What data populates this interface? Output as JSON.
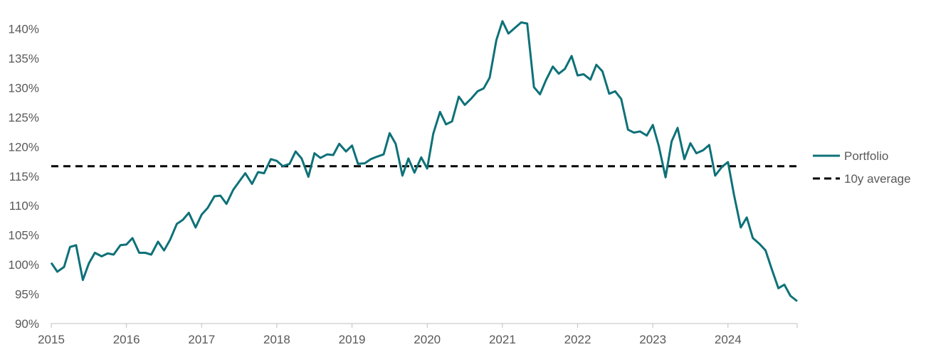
{
  "chart_data": {
    "type": "line",
    "title": "",
    "xlabel": "",
    "ylabel": "",
    "xlim": [
      2015.0,
      2024.92
    ],
    "ylim": [
      90,
      142
    ],
    "x_ticks": [
      2015,
      2016,
      2017,
      2018,
      2019,
      2020,
      2021,
      2022,
      2023,
      2024
    ],
    "x_tick_labels": [
      "2015",
      "2016",
      "2017",
      "2018",
      "2019",
      "2020",
      "2021",
      "2022",
      "2023",
      "2024"
    ],
    "y_ticks": [
      90,
      95,
      100,
      105,
      110,
      115,
      120,
      125,
      130,
      135,
      140
    ],
    "y_tick_labels": [
      "90%",
      "95%",
      "100%",
      "105%",
      "110%",
      "115%",
      "120%",
      "125%",
      "130%",
      "135%",
      "140%"
    ],
    "grid": false,
    "legend": {
      "placement": "right",
      "entries": [
        "Portfolio",
        "10y average"
      ]
    },
    "colors": {
      "portfolio": "#0e7178",
      "average": "#000000"
    },
    "series": [
      {
        "name": "Portfolio",
        "style": "solid",
        "points": [
          [
            2015.0,
            100.3
          ],
          [
            2015.08,
            98.8
          ],
          [
            2015.17,
            99.6
          ],
          [
            2015.25,
            103.0
          ],
          [
            2015.33,
            103.3
          ],
          [
            2015.42,
            97.4
          ],
          [
            2015.5,
            100.2
          ],
          [
            2015.58,
            102.0
          ],
          [
            2015.67,
            101.4
          ],
          [
            2015.75,
            101.9
          ],
          [
            2015.83,
            101.7
          ],
          [
            2015.92,
            103.3
          ],
          [
            2016.0,
            103.4
          ],
          [
            2016.08,
            104.5
          ],
          [
            2016.17,
            102.0
          ],
          [
            2016.25,
            102.0
          ],
          [
            2016.33,
            101.7
          ],
          [
            2016.42,
            103.9
          ],
          [
            2016.5,
            102.4
          ],
          [
            2016.58,
            104.2
          ],
          [
            2016.67,
            106.9
          ],
          [
            2016.75,
            107.6
          ],
          [
            2016.83,
            108.8
          ],
          [
            2016.92,
            106.3
          ],
          [
            2017.0,
            108.5
          ],
          [
            2017.08,
            109.6
          ],
          [
            2017.17,
            111.6
          ],
          [
            2017.25,
            111.7
          ],
          [
            2017.33,
            110.3
          ],
          [
            2017.42,
            112.7
          ],
          [
            2017.5,
            114.1
          ],
          [
            2017.58,
            115.5
          ],
          [
            2017.67,
            113.7
          ],
          [
            2017.75,
            115.7
          ],
          [
            2017.83,
            115.5
          ],
          [
            2017.92,
            117.9
          ],
          [
            2018.0,
            117.6
          ],
          [
            2018.08,
            116.7
          ],
          [
            2018.17,
            117.1
          ],
          [
            2018.25,
            119.2
          ],
          [
            2018.33,
            118.0
          ],
          [
            2018.42,
            114.9
          ],
          [
            2018.5,
            118.9
          ],
          [
            2018.58,
            118.1
          ],
          [
            2018.67,
            118.7
          ],
          [
            2018.75,
            118.6
          ],
          [
            2018.83,
            120.5
          ],
          [
            2018.92,
            119.2
          ],
          [
            2019.0,
            120.2
          ],
          [
            2019.08,
            117.1
          ],
          [
            2019.17,
            117.2
          ],
          [
            2019.25,
            117.9
          ],
          [
            2019.33,
            118.3
          ],
          [
            2019.42,
            118.7
          ],
          [
            2019.5,
            122.3
          ],
          [
            2019.58,
            120.5
          ],
          [
            2019.67,
            115.1
          ],
          [
            2019.75,
            118.0
          ],
          [
            2019.83,
            115.6
          ],
          [
            2019.92,
            118.2
          ],
          [
            2020.0,
            116.3
          ],
          [
            2020.08,
            122.2
          ],
          [
            2020.17,
            125.9
          ],
          [
            2020.25,
            123.8
          ],
          [
            2020.33,
            124.3
          ],
          [
            2020.42,
            128.5
          ],
          [
            2020.5,
            127.1
          ],
          [
            2020.58,
            128.1
          ],
          [
            2020.67,
            129.4
          ],
          [
            2020.75,
            129.9
          ],
          [
            2020.83,
            131.7
          ],
          [
            2020.92,
            138.1
          ],
          [
            2021.0,
            141.3
          ],
          [
            2021.08,
            139.2
          ],
          [
            2021.17,
            140.2
          ],
          [
            2021.25,
            141.1
          ],
          [
            2021.33,
            140.9
          ],
          [
            2021.42,
            130.1
          ],
          [
            2021.5,
            128.9
          ],
          [
            2021.58,
            131.3
          ],
          [
            2021.67,
            133.6
          ],
          [
            2021.75,
            132.4
          ],
          [
            2021.83,
            133.2
          ],
          [
            2021.92,
            135.4
          ],
          [
            2022.0,
            132.1
          ],
          [
            2022.08,
            132.3
          ],
          [
            2022.17,
            131.4
          ],
          [
            2022.25,
            133.9
          ],
          [
            2022.33,
            132.8
          ],
          [
            2022.42,
            129.0
          ],
          [
            2022.5,
            129.4
          ],
          [
            2022.58,
            128.1
          ],
          [
            2022.67,
            122.9
          ],
          [
            2022.75,
            122.4
          ],
          [
            2022.83,
            122.6
          ],
          [
            2022.92,
            121.9
          ],
          [
            2023.0,
            123.7
          ],
          [
            2023.08,
            120.1
          ],
          [
            2023.17,
            114.8
          ],
          [
            2023.25,
            120.9
          ],
          [
            2023.33,
            123.2
          ],
          [
            2023.42,
            117.9
          ],
          [
            2023.5,
            120.6
          ],
          [
            2023.58,
            118.9
          ],
          [
            2023.67,
            119.4
          ],
          [
            2023.75,
            120.3
          ],
          [
            2023.83,
            115.1
          ],
          [
            2023.92,
            116.6
          ],
          [
            2024.0,
            117.4
          ],
          [
            2024.08,
            111.8
          ],
          [
            2024.17,
            106.3
          ],
          [
            2024.25,
            108.0
          ],
          [
            2024.33,
            104.5
          ],
          [
            2024.42,
            103.5
          ],
          [
            2024.5,
            102.4
          ],
          [
            2024.58,
            99.3
          ],
          [
            2024.67,
            96.0
          ],
          [
            2024.75,
            96.6
          ],
          [
            2024.83,
            94.7
          ],
          [
            2024.92,
            93.8
          ]
        ]
      },
      {
        "name": "10y average",
        "style": "dashed",
        "points": [
          [
            2015.0,
            116.7
          ],
          [
            2024.92,
            116.7
          ]
        ]
      }
    ]
  }
}
